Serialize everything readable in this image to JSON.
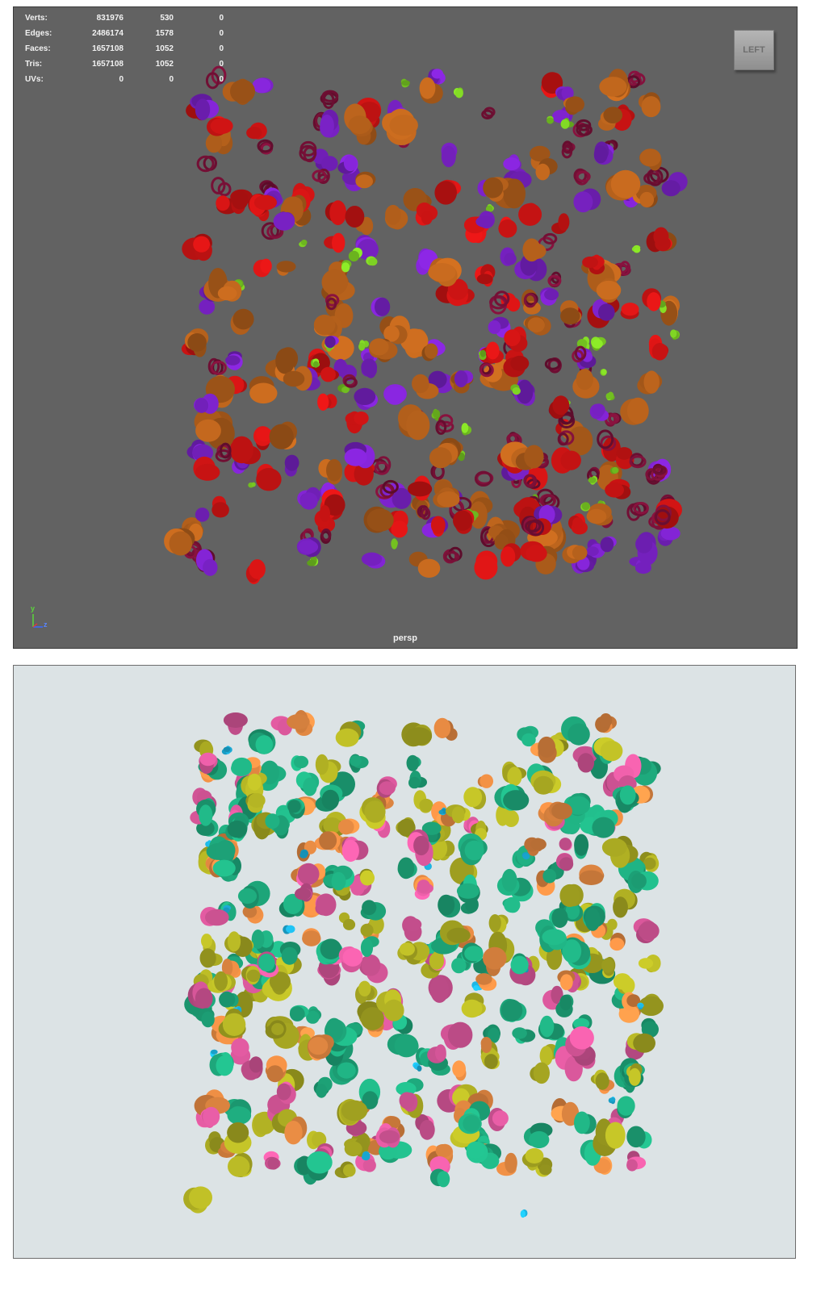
{
  "viewport": {
    "stats": [
      {
        "label": "Verts:",
        "values": [
          "831976",
          "530",
          "0"
        ]
      },
      {
        "label": "Edges:",
        "values": [
          "2486174",
          "1578",
          "0"
        ]
      },
      {
        "label": "Faces:",
        "values": [
          "1657108",
          "1052",
          "0"
        ]
      },
      {
        "label": "Tris:",
        "values": [
          "1657108",
          "1052",
          "0"
        ]
      },
      {
        "label": "UVs:",
        "values": [
          "0",
          "0",
          "0"
        ]
      }
    ],
    "viewcube_label": "LEFT",
    "camera_label": "persp",
    "axis": {
      "y": "y",
      "z": "z"
    },
    "palette": {
      "background": "#626262",
      "orange": "#b8621c",
      "red": "#d01414",
      "purple": "#7b22c8",
      "maroon": "#7a1038",
      "green": "#7ccf23"
    }
  },
  "render": {
    "palette": {
      "background": "#dce3e5",
      "teal": "#1fae80",
      "olive": "#b3b324",
      "pink": "#e05aa0",
      "orange": "#ee8f45",
      "cyan": "#1db9e8"
    }
  }
}
